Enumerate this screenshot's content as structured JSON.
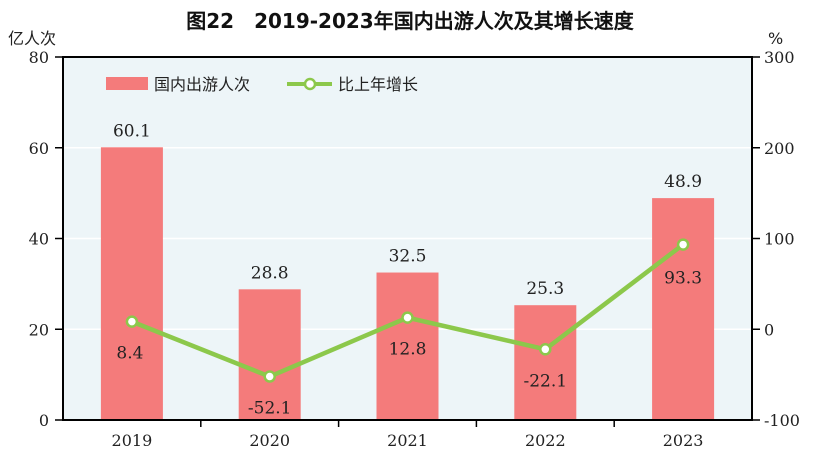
{
  "chart_data": {
    "type": "bar+line",
    "title": "图22　2019-2023年国内出游人次及其增长速度",
    "ylabel_left": "亿人次",
    "ylabel_right": "%",
    "categories": [
      "2019",
      "2020",
      "2021",
      "2022",
      "2023"
    ],
    "ylim_left": [
      0,
      80
    ],
    "yticks_left": [
      0,
      20,
      40,
      60,
      80
    ],
    "ylim_right": [
      -100,
      300
    ],
    "yticks_right": [
      -100,
      0,
      100,
      200,
      300
    ],
    "grid": true,
    "legend_placement": "top-left",
    "series": [
      {
        "name": "国内出游人次",
        "type": "bar",
        "axis": "left",
        "values": [
          60.1,
          28.8,
          32.5,
          25.3,
          48.9
        ],
        "labels": [
          "60.1",
          "28.8",
          "32.5",
          "25.3",
          "48.9"
        ],
        "color": "#f47b7b"
      },
      {
        "name": "比上年增长",
        "type": "line",
        "axis": "right",
        "values": [
          8.4,
          -52.1,
          12.8,
          -22.1,
          93.3
        ],
        "labels": [
          "8.4",
          "-52.1",
          "12.8",
          "-22.1",
          "93.3"
        ],
        "color": "#8cc84b"
      }
    ],
    "colors": {
      "plot_background": "#edf5f8",
      "grid": "#ffffff"
    }
  }
}
